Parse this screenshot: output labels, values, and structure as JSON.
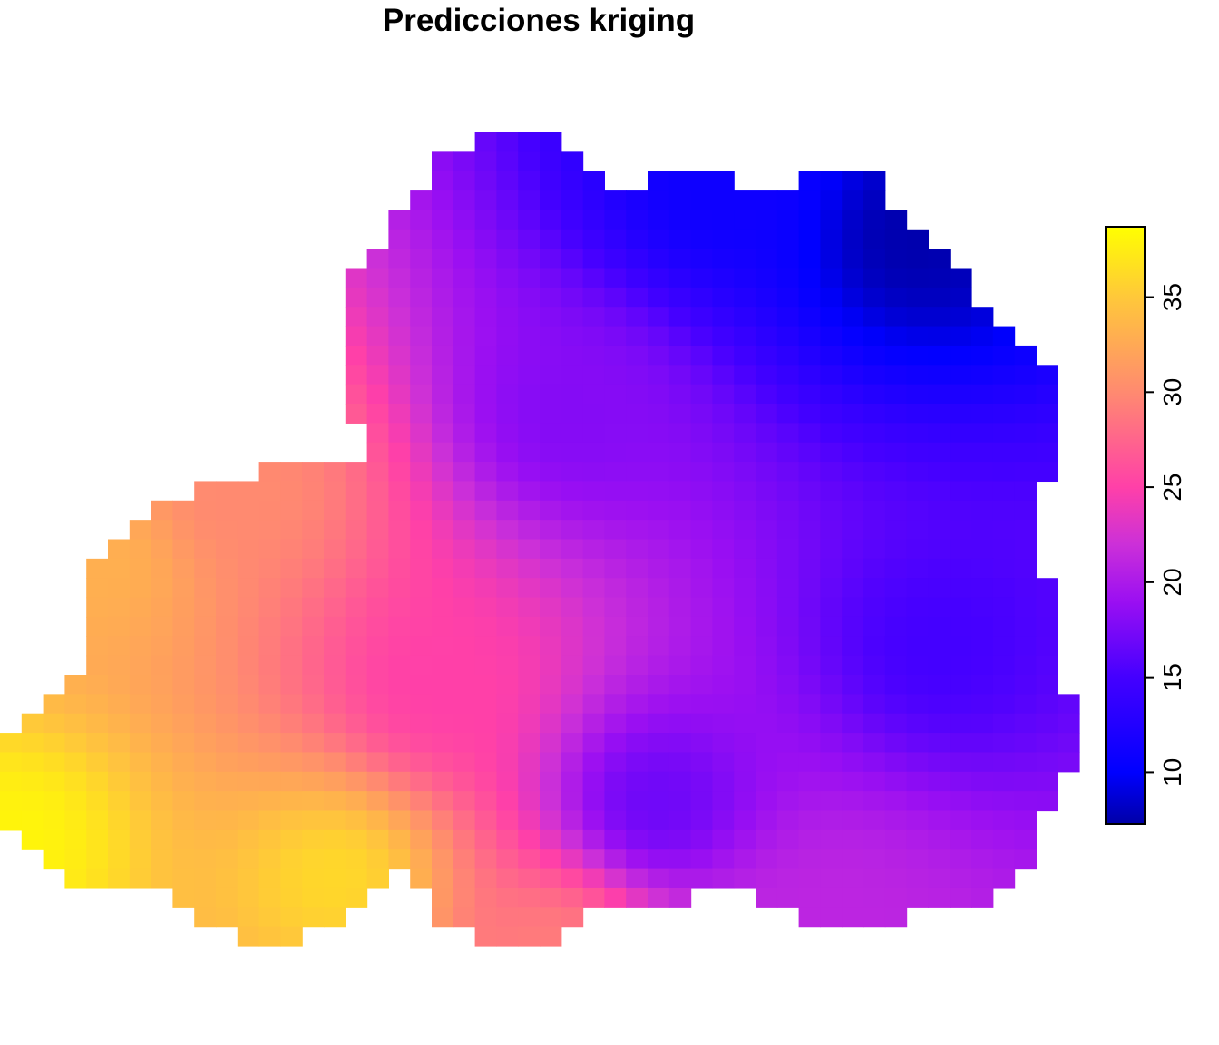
{
  "chart_data": {
    "type": "heatmap",
    "title": "Predicciones kriging",
    "xlabel": "",
    "ylabel": "",
    "legend": {
      "position": "right",
      "orientation": "vertical",
      "range": [
        7.3,
        38.7
      ],
      "ticks": [
        10,
        15,
        20,
        25,
        30,
        35
      ]
    },
    "color_scale": {
      "name": "plasma-like",
      "stops": [
        {
          "value": 7.3,
          "color": "#0000A8"
        },
        {
          "value": 10,
          "color": "#0000FF"
        },
        {
          "value": 15,
          "color": "#4400FF"
        },
        {
          "value": 19,
          "color": "#9B0FF2"
        },
        {
          "value": 22,
          "color": "#CC30D8"
        },
        {
          "value": 25,
          "color": "#FF40A8"
        },
        {
          "value": 30,
          "color": "#FF8A70"
        },
        {
          "value": 35,
          "color": "#FFC83A"
        },
        {
          "value": 38.7,
          "color": "#FFFF00"
        }
      ]
    },
    "field": {
      "description": "Kriged prediction surface; grid cells where a value is defined, others empty",
      "centers": [
        {
          "col": 0,
          "row": 40,
          "value": 38
        },
        {
          "col": 15,
          "row": 42,
          "value": 36
        },
        {
          "col": 20,
          "row": 32,
          "value": 25
        },
        {
          "col": 26,
          "row": 18,
          "value": 18
        },
        {
          "col": 33,
          "row": 6,
          "value": 11
        },
        {
          "col": 42,
          "row": 9,
          "value": 7.5
        },
        {
          "col": 43,
          "row": 30,
          "value": 15
        },
        {
          "col": 38,
          "row": 44,
          "value": 21
        },
        {
          "col": 25,
          "row": 46,
          "value": 29
        },
        {
          "col": 30,
          "row": 38,
          "value": 17
        },
        {
          "col": 4,
          "row": 26,
          "value": 33
        },
        {
          "col": 11,
          "row": 22,
          "value": 30
        }
      ]
    },
    "grid": false
  }
}
